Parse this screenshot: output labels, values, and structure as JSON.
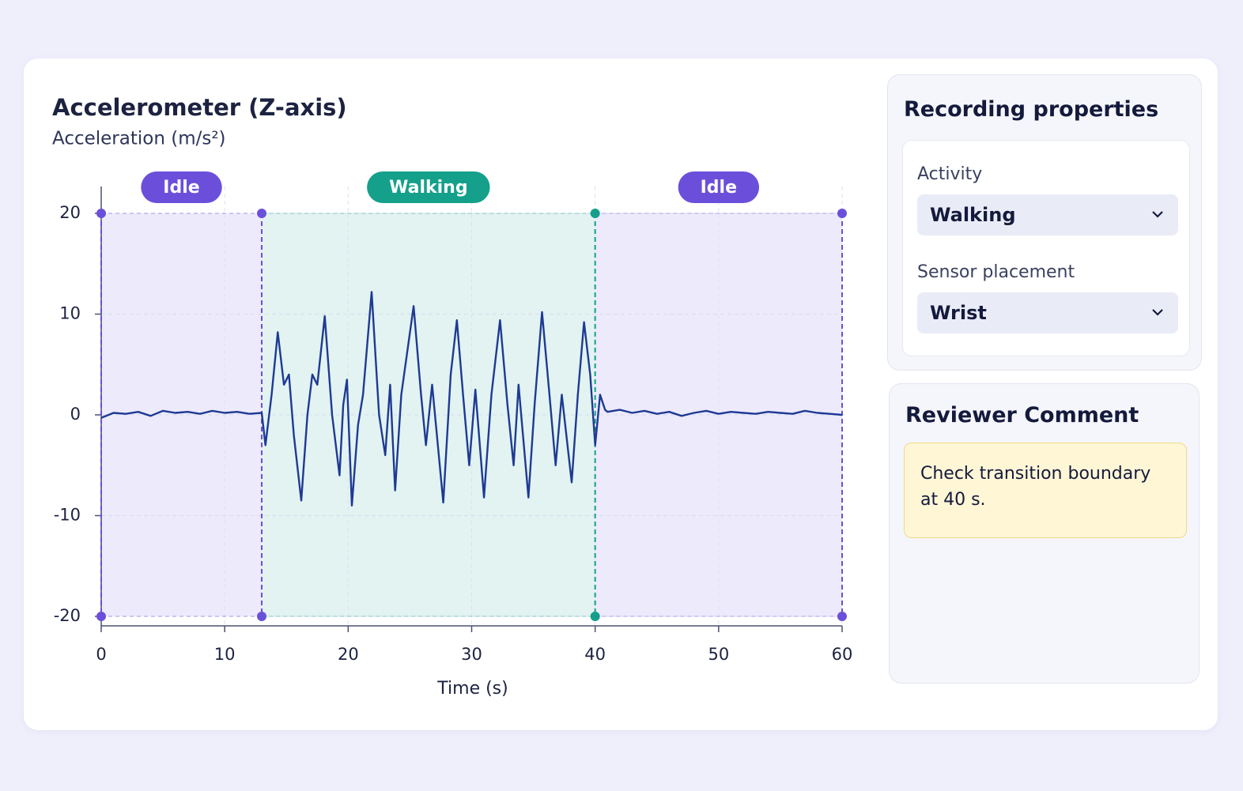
{
  "chart_data": {
    "type": "line",
    "title": "Accelerometer (Z-axis)",
    "y_label": "Acceleration (m/s²)",
    "x_label": "Time (s)",
    "xlim": [
      0,
      60
    ],
    "xticks": [
      0,
      10,
      20,
      30,
      40,
      50,
      60
    ],
    "ylim": [
      -20,
      20
    ],
    "yticks": [
      -20,
      -10,
      0,
      10,
      20
    ],
    "grid": true,
    "segments": [
      {
        "label": "Idle",
        "start": 0,
        "end": 13,
        "color": "#6b4fdb"
      },
      {
        "label": "Walking",
        "start": 13,
        "end": 40,
        "color": "#14a08a"
      },
      {
        "label": "Idle",
        "start": 40,
        "end": 60,
        "color": "#6b4fdb"
      }
    ],
    "series": [
      {
        "color": "#1f3a93",
        "x": [
          0,
          1,
          2,
          3,
          4,
          5,
          6,
          7,
          8,
          9,
          10,
          11,
          12,
          13,
          13.3,
          13.8,
          14.3,
          14.8,
          15.2,
          15.6,
          16.2,
          16.7,
          17.1,
          17.5,
          18.1,
          18.7,
          19.3,
          19.6,
          19.9,
          20.3,
          20.8,
          21.2,
          21.9,
          22.5,
          23.0,
          23.4,
          23.8,
          24.3,
          25.3,
          25.9,
          26.3,
          26.8,
          27.7,
          28.3,
          28.8,
          29.3,
          29.8,
          30.3,
          31.0,
          31.6,
          32.3,
          32.9,
          33.4,
          33.8,
          34.6,
          35.1,
          35.7,
          36.3,
          36.8,
          37.3,
          38.1,
          38.6,
          39.1,
          39.6,
          40.0,
          40.4,
          40.8,
          41,
          42,
          43,
          44,
          45,
          46,
          47,
          48,
          49,
          50,
          51,
          52,
          53,
          54,
          55,
          56,
          57,
          58,
          59,
          60
        ],
        "values": [
          -0.3,
          0.2,
          0.1,
          0.3,
          -0.1,
          0.4,
          0.2,
          0.3,
          0.1,
          0.4,
          0.2,
          0.3,
          0.1,
          0.2,
          -3,
          2,
          8.2,
          3,
          4,
          -2,
          -8.5,
          0,
          4,
          3,
          9.8,
          0,
          -6,
          1,
          3.5,
          -9,
          -1,
          2,
          12.2,
          0,
          -4,
          3,
          -7.5,
          2,
          10.8,
          2,
          -3,
          3,
          -8.7,
          4,
          9.4,
          2,
          -5,
          2.5,
          -8.2,
          2,
          9.4,
          1,
          -5,
          3,
          -8.2,
          1,
          10.2,
          2,
          -5,
          2,
          -6.7,
          2,
          9.2,
          4,
          -3,
          2,
          0.5,
          0.3,
          0.5,
          0.2,
          0.4,
          0.1,
          0.3,
          -0.1,
          0.2,
          0.4,
          0.1,
          0.3,
          0.2,
          0.1,
          0.3,
          0.2,
          0.1,
          0.4,
          0.2,
          0.1,
          0
        ]
      }
    ]
  },
  "panel": {
    "title": "Recording properties",
    "fields": [
      {
        "label": "Activity",
        "value": "Walking"
      },
      {
        "label": "Sensor placement",
        "value": "Wrist"
      }
    ]
  },
  "comment": {
    "title": "Reviewer Comment",
    "text": "Check transition boundary at 40 s."
  }
}
